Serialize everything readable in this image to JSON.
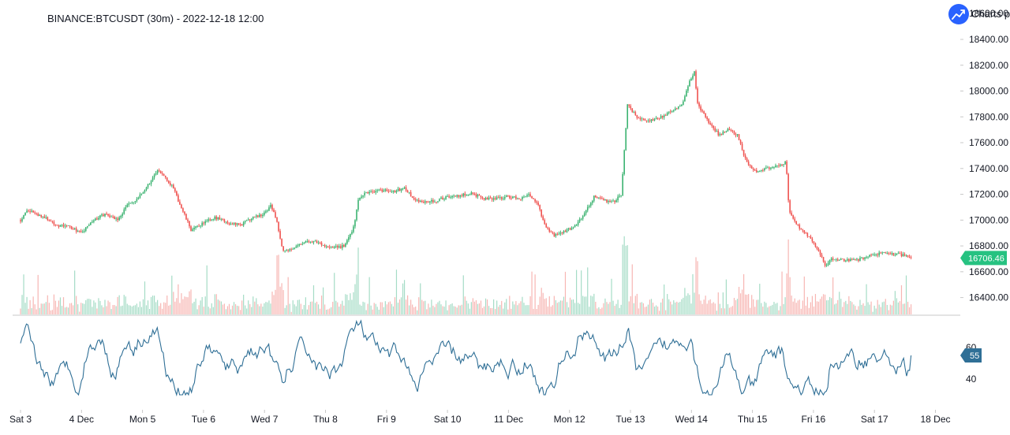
{
  "title": "BINANCE:BTCUSDT (30m) - 2022-12-18 12:00",
  "watermark": "Charts p",
  "logo_icon": "trending-up-icon",
  "colors": {
    "up": "#26a69a",
    "up_candle": "#3cb371",
    "down": "#ef5350",
    "volume_up": "#a5dcc6",
    "volume_down": "#f7b6b3",
    "rsi_line": "#2f6f96",
    "price_tag": "#26c281",
    "rsi_tag": "#2f6f96",
    "logo_bg": "#2962ff"
  },
  "chart_data": [
    {
      "type": "candlestick",
      "symbol": "BINANCE:BTCUSDT",
      "interval": "30m",
      "x_ticks": [
        "Sat 3",
        "4 Dec",
        "Mon 5",
        "Tue 6",
        "Wed 7",
        "Thu 8",
        "Fri 9",
        "Sat 10",
        "11 Dec",
        "Mon 12",
        "Tue 13",
        "Wed 14",
        "Thu 15",
        "Fri 16",
        "Sat 17",
        "18 Dec"
      ],
      "y_ticks": [
        "18600.00",
        "18400.00",
        "18200.00",
        "18000.00",
        "17800.00",
        "17600.00",
        "17400.00",
        "17200.00",
        "17000.00",
        "16800.00",
        "16600.00",
        "16400.00"
      ],
      "ylim": [
        16300,
        18600
      ],
      "last_price": "16706.46",
      "last_price_value": 16706.46,
      "price_path": [
        [
          0,
          17000
        ],
        [
          0.1,
          17080
        ],
        [
          0.25,
          17050
        ],
        [
          0.4,
          17020
        ],
        [
          0.6,
          16960
        ],
        [
          0.8,
          16950
        ],
        [
          1.0,
          16900
        ],
        [
          1.2,
          17000
        ],
        [
          1.4,
          17050
        ],
        [
          1.6,
          17000
        ],
        [
          1.75,
          17120
        ],
        [
          1.9,
          17150
        ],
        [
          2.1,
          17280
        ],
        [
          2.25,
          17380
        ],
        [
          2.35,
          17350
        ],
        [
          2.5,
          17250
        ],
        [
          2.65,
          17080
        ],
        [
          2.8,
          16920
        ],
        [
          3.0,
          16980
        ],
        [
          3.2,
          17020
        ],
        [
          3.4,
          16980
        ],
        [
          3.6,
          16960
        ],
        [
          3.8,
          17020
        ],
        [
          4.0,
          17050
        ],
        [
          4.1,
          17120
        ],
        [
          4.2,
          17000
        ],
        [
          4.3,
          16760
        ],
        [
          4.45,
          16780
        ],
        [
          4.6,
          16820
        ],
        [
          4.8,
          16840
        ],
        [
          5.0,
          16800
        ],
        [
          5.2,
          16790
        ],
        [
          5.3,
          16800
        ],
        [
          5.45,
          16920
        ],
        [
          5.55,
          17180
        ],
        [
          5.7,
          17220
        ],
        [
          5.9,
          17230
        ],
        [
          6.1,
          17220
        ],
        [
          6.3,
          17250
        ],
        [
          6.45,
          17160
        ],
        [
          6.6,
          17140
        ],
        [
          6.8,
          17150
        ],
        [
          7.0,
          17180
        ],
        [
          7.2,
          17190
        ],
        [
          7.4,
          17210
        ],
        [
          7.6,
          17160
        ],
        [
          7.8,
          17170
        ],
        [
          8.0,
          17180
        ],
        [
          8.2,
          17170
        ],
        [
          8.35,
          17200
        ],
        [
          8.5,
          17100
        ],
        [
          8.6,
          16950
        ],
        [
          8.75,
          16880
        ],
        [
          8.95,
          16920
        ],
        [
          9.1,
          16960
        ],
        [
          9.25,
          17050
        ],
        [
          9.4,
          17180
        ],
        [
          9.6,
          17150
        ],
        [
          9.75,
          17150
        ],
        [
          9.85,
          17200
        ],
        [
          9.95,
          17900
        ],
        [
          10.1,
          17800
        ],
        [
          10.3,
          17770
        ],
        [
          10.5,
          17800
        ],
        [
          10.7,
          17850
        ],
        [
          10.85,
          17900
        ],
        [
          10.95,
          18050
        ],
        [
          11.05,
          18150
        ],
        [
          11.1,
          17900
        ],
        [
          11.25,
          17780
        ],
        [
          11.45,
          17660
        ],
        [
          11.6,
          17700
        ],
        [
          11.75,
          17660
        ],
        [
          11.9,
          17450
        ],
        [
          12.05,
          17380
        ],
        [
          12.25,
          17400
        ],
        [
          12.4,
          17420
        ],
        [
          12.55,
          17450
        ],
        [
          12.6,
          17060
        ],
        [
          12.75,
          16950
        ],
        [
          12.9,
          16880
        ],
        [
          13.0,
          16820
        ],
        [
          13.1,
          16750
        ],
        [
          13.2,
          16640
        ],
        [
          13.3,
          16700
        ],
        [
          13.5,
          16690
        ],
        [
          13.7,
          16690
        ],
        [
          13.9,
          16720
        ],
        [
          14.1,
          16740
        ],
        [
          14.3,
          16740
        ],
        [
          14.45,
          16730
        ],
        [
          14.6,
          16706.46
        ]
      ]
    },
    {
      "type": "line",
      "indicator": "RSI",
      "y_ticks": [
        "60",
        "40"
      ],
      "ylim": [
        27,
        80
      ],
      "last_value": "55",
      "last_value_number": 55
    }
  ]
}
